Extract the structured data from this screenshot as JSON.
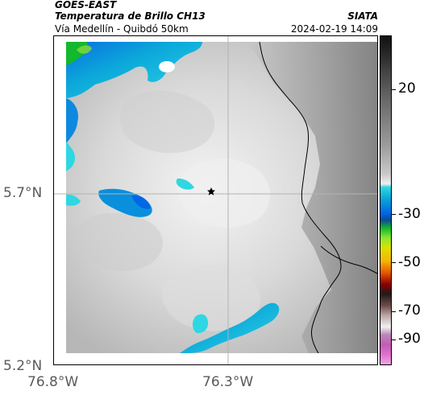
{
  "header": {
    "title_line_1": "GOES-EAST",
    "title_line_2": "Temperatura de Brillo CH13",
    "subtitle": "Vía Medellín - Quibdó 50km",
    "org": "SIATA",
    "timestamp": "2024-02-19 14:09"
  },
  "axes": {
    "lat_labels": [
      "5.7°N",
      "5.2°N"
    ],
    "lon_labels": [
      "76.8°W",
      "76.3°W"
    ]
  },
  "colorbar": {
    "tick_labels": [
      "20",
      "-30",
      "-50",
      "-70",
      "-90"
    ]
  },
  "colors": {
    "border": "#000000",
    "axis_text": "#5a5a5a",
    "grid_line": "#b3b3b3",
    "map_light": "#efefef",
    "map_dark": "#8f8f8f",
    "cloud_blue": "#0aa6d6",
    "cloud_cyan": "#2ed7e2",
    "cloud_green": "#13b82d"
  },
  "map": {
    "marker_symbol": "star"
  }
}
